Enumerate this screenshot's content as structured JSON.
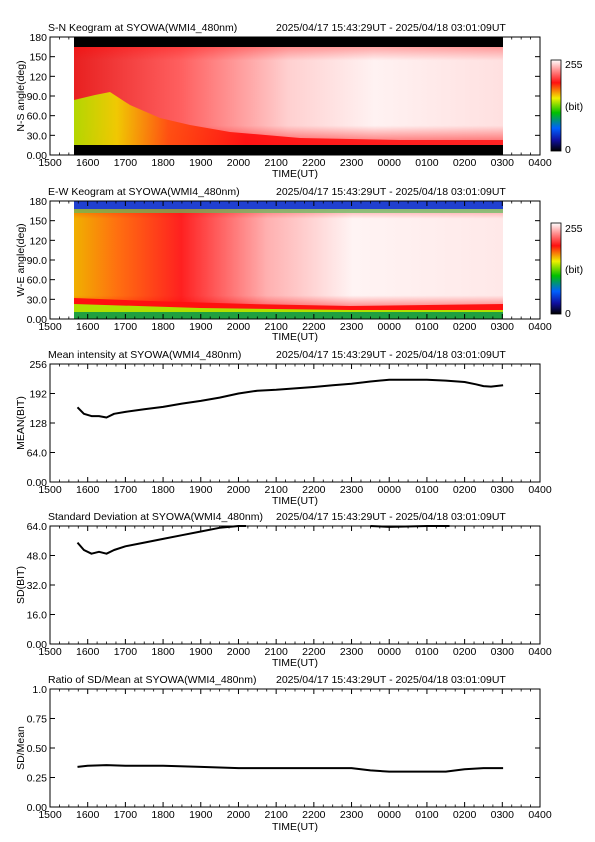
{
  "x_tick_labels": [
    "1500",
    "1600",
    "1700",
    "1800",
    "1900",
    "2000",
    "2100",
    "2200",
    "2300",
    "0000",
    "0100",
    "0200",
    "0300",
    "0400"
  ],
  "x_axis_title": "TIME(UT)",
  "period": "2025/04/17 15:43:29UT - 2025/04/18 03:01:09UT",
  "colorbar": {
    "max_label": "255",
    "unit_label": "(bit)",
    "min_label": "0"
  },
  "chart_data": [
    {
      "type": "heatmap",
      "title": "S-N Keogram at SYOWA(WMI4_480nm)",
      "ylabel": "N-S angle(deg)",
      "xlabel": "TIME(UT)",
      "y_tick_labels": [
        "0.00",
        "30.0",
        "60.0",
        "90.0",
        "120",
        "150",
        "180"
      ],
      "ylim": [
        0,
        180
      ],
      "xlim_hours": [
        15.0,
        28.0
      ],
      "data_x_range_hours": [
        15.73,
        27.02
      ],
      "color_scale": {
        "min": 0,
        "max": 255,
        "colormap": "rainbow (black-blue-green-yellow-red-white)"
      },
      "description": "intensity 0-255 vs time and N-S angle; mostly red/white, yellow-green near low angles before 17UT"
    },
    {
      "type": "heatmap",
      "title": "E-W Keogram at SYOWA(WMI4_480nm)",
      "ylabel": "W-E angle(deg)",
      "xlabel": "TIME(UT)",
      "y_tick_labels": [
        "0.00",
        "30.0",
        "60.0",
        "90.0",
        "120",
        "150",
        "180"
      ],
      "ylim": [
        0,
        180
      ],
      "xlim_hours": [
        15.0,
        28.0
      ],
      "data_x_range_hours": [
        15.73,
        27.02
      ],
      "color_scale": {
        "min": 0,
        "max": 255,
        "colormap": "rainbow (black-blue-green-yellow-red-white)"
      },
      "description": "intensity 0-255 vs time and W-E angle; yellow/orange before 18UT, red and white later"
    },
    {
      "type": "line",
      "title": "Mean intensity at SYOWA(WMI4_480nm)",
      "ylabel": "MEAN(BIT)",
      "xlabel": "TIME(UT)",
      "y_tick_labels": [
        "0.00",
        "64.0",
        "128",
        "192",
        "256"
      ],
      "ylim": [
        0,
        256
      ],
      "xlim_hours": [
        15.0,
        28.0
      ],
      "series": [
        {
          "x": [
            15.73,
            15.9,
            16.1,
            16.3,
            16.5,
            16.7,
            17.0,
            17.5,
            18.0,
            18.5,
            19.0,
            19.5,
            20.0,
            20.5,
            21.0,
            21.5,
            22.0,
            22.5,
            23.0,
            23.5,
            24.0,
            24.5,
            25.0,
            25.5,
            26.0,
            26.3,
            26.5,
            26.7,
            27.02
          ],
          "values": [
            162,
            148,
            143,
            143,
            140,
            148,
            152,
            158,
            163,
            170,
            176,
            183,
            192,
            198,
            200,
            203,
            206,
            210,
            213,
            218,
            222,
            222,
            222,
            220,
            217,
            212,
            208,
            207,
            210
          ]
        }
      ]
    },
    {
      "type": "line",
      "title": "Standard Deviation at SYOWA(WMI4_480nm)",
      "ylabel": "SD(BIT)",
      "xlabel": "TIME(UT)",
      "y_tick_labels": [
        "0.00",
        "16.0",
        "32.0",
        "48.0",
        "64.0"
      ],
      "ylim": [
        0,
        64
      ],
      "xlim_hours": [
        15.0,
        28.0
      ],
      "series": [
        {
          "x": [
            15.73,
            15.9,
            16.1,
            16.3,
            16.5,
            16.7,
            17.0,
            17.5,
            18.0,
            18.5,
            19.0,
            19.5,
            20.0,
            20.2,
            null,
            23.5,
            24.0,
            25.0,
            25.6
          ],
          "values": [
            55,
            51,
            49,
            50,
            49,
            51,
            53,
            55,
            57,
            59,
            61,
            63,
            64,
            64,
            null,
            64,
            63.5,
            64,
            64
          ]
        }
      ]
    },
    {
      "type": "line",
      "title": "Ratio of SD/Mean at SYOWA(WMI4_480nm)",
      "ylabel": "SD/Mean",
      "xlabel": "TIME(UT)",
      "y_tick_labels": [
        "0.00",
        "0.25",
        "0.50",
        "0.75",
        "1.0"
      ],
      "ylim": [
        0,
        1.0
      ],
      "xlim_hours": [
        15.0,
        28.0
      ],
      "series": [
        {
          "x": [
            15.73,
            16.0,
            16.5,
            17.0,
            18.0,
            19.0,
            20.0,
            21.0,
            22.0,
            23.0,
            23.5,
            24.0,
            24.5,
            25.0,
            25.5,
            26.0,
            26.5,
            27.02
          ],
          "values": [
            0.34,
            0.35,
            0.355,
            0.35,
            0.35,
            0.34,
            0.33,
            0.33,
            0.33,
            0.33,
            0.31,
            0.3,
            0.3,
            0.3,
            0.3,
            0.32,
            0.33,
            0.33
          ]
        }
      ]
    }
  ]
}
